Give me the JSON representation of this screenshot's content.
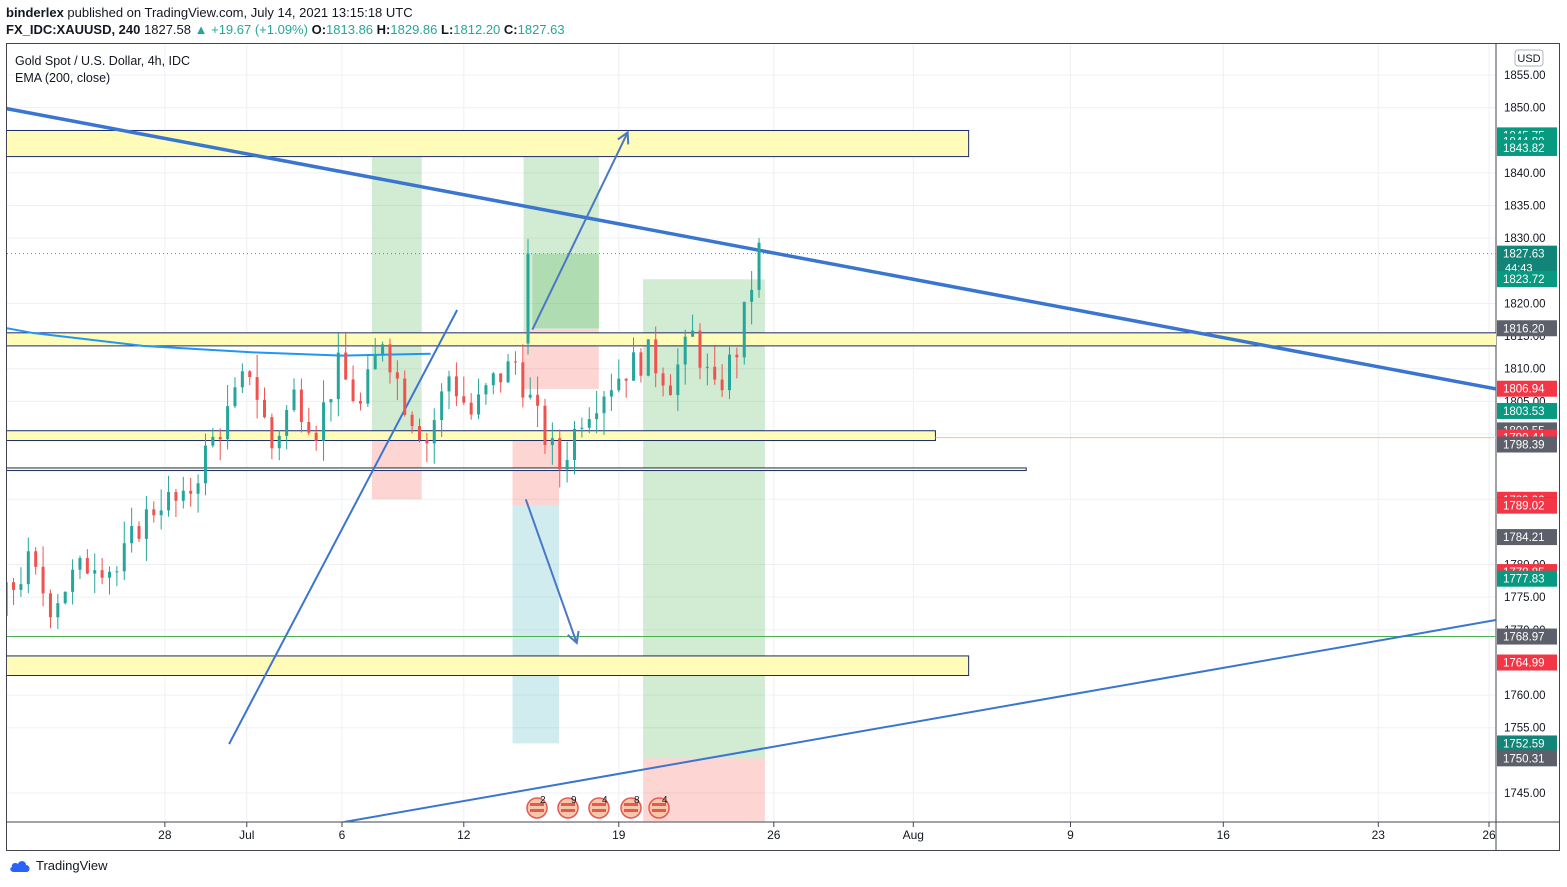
{
  "header": {
    "publisher": "binderlex",
    "published_text": " published on TradingView.com, July 14, 2021 13:15:18 UTC",
    "symbol": "FX_IDC:XAUUSD, 240",
    "last": "1827.58",
    "change": "▲ +19.67 (+1.09%)",
    "o_label": "O:",
    "o_value": "1813.86",
    "h_label": "H:",
    "h_value": "1829.86",
    "l_label": "L:",
    "l_value": "1812.20",
    "c_label": "C:",
    "c_value": "1827.63"
  },
  "legend": {
    "title": "Gold Spot / U.S. Dollar, 4h, IDC",
    "indicator": "EMA (200, close)"
  },
  "brand": {
    "name": "TradingView"
  },
  "currency": "USD",
  "colors": {
    "up": "#26a69a",
    "down": "#ef5350",
    "ema": "#2196f3",
    "trend": "#3a75d0",
    "zone_fill": "#fffbb8",
    "zone_border": "#1a2a6c",
    "green_tag": "#089981",
    "red_tag": "#f23645",
    "gray_tag": "#5d606b",
    "teal_tag": "#008f88"
  },
  "chart_data": {
    "type": "candlestick",
    "symbol": "XAUUSD",
    "timeframe": "4h",
    "ylim": [
      1740,
      1860
    ],
    "y_ticks": [
      1745,
      1755,
      1760,
      1770,
      1775,
      1780,
      1790,
      1800,
      1805,
      1810,
      1815,
      1820,
      1830,
      1835,
      1840,
      1850,
      1855
    ],
    "x_ticks": [
      "28",
      "Jul",
      "6",
      "12",
      "19",
      "26",
      "Aug",
      "9",
      "16",
      "23",
      "26"
    ],
    "last_price": 1827.63,
    "countdown": "44:43",
    "price_tags": [
      {
        "value": "1845.75",
        "color": "green"
      },
      {
        "value": "1844.80",
        "color": "green"
      },
      {
        "value": "1843.82",
        "color": "green"
      },
      {
        "value": "1827.63",
        "color": "teal",
        "sub": "44:43"
      },
      {
        "value": "1823.72",
        "color": "green"
      },
      {
        "value": "1816.20",
        "color": "gray"
      },
      {
        "value": "1806.94",
        "color": "red"
      },
      {
        "value": "1803.53",
        "color": "green"
      },
      {
        "value": "1800.55",
        "color": "gray"
      },
      {
        "value": "1799.44",
        "color": "red"
      },
      {
        "value": "1798.39",
        "color": "gray"
      },
      {
        "value": "1789.92",
        "color": "red"
      },
      {
        "value": "1789.09",
        "color": "gray"
      },
      {
        "value": "1789.02",
        "color": "red"
      },
      {
        "value": "1784.21",
        "color": "gray"
      },
      {
        "value": "1778.85",
        "color": "red"
      },
      {
        "value": "1777.83",
        "color": "green"
      },
      {
        "value": "1768.97",
        "color": "gray"
      },
      {
        "value": "1764.99",
        "color": "red"
      },
      {
        "value": "1752.59",
        "color": "teal"
      },
      {
        "value": "1750.31",
        "color": "gray"
      }
    ],
    "zones": [
      {
        "from": 1842.5,
        "to": 1846.5,
        "x_end": "Aug 3"
      },
      {
        "from": 1813.5,
        "to": 1815.5,
        "x_end": "Right"
      },
      {
        "from": 1799.0,
        "to": 1800.5,
        "x_end": "Aug 2"
      },
      {
        "from": 1794.4,
        "to": 1794.8,
        "x_end": "Aug 6"
      },
      {
        "from": 1763.0,
        "to": 1766.0,
        "x_end": "Aug 3"
      }
    ],
    "ema200": [
      [
        -33,
        1847
      ],
      [
        -28,
        1836
      ],
      [
        -24,
        1829
      ],
      [
        -21,
        1822
      ],
      [
        -18,
        1818
      ],
      [
        -14,
        1815.5
      ],
      [
        -9,
        1813.5
      ],
      [
        -4,
        1812.5
      ],
      [
        0,
        1812
      ],
      [
        4,
        1812.3
      ]
    ],
    "candles_ohlc_hint": "4h XAUUSD, late June – July 14 2021, range 1750–1829",
    "candle_path_days": [
      [
        -38,
        1780
      ],
      [
        -36,
        1785
      ],
      [
        -34,
        1787
      ],
      [
        -32,
        1791
      ],
      [
        -31,
        1783
      ],
      [
        -30,
        1790
      ],
      [
        -29,
        1781
      ],
      [
        -28,
        1778
      ],
      [
        -27,
        1784
      ],
      [
        -26,
        1782
      ],
      [
        -25,
        1778
      ],
      [
        -24,
        1788
      ],
      [
        -23,
        1780
      ],
      [
        -22,
        1783
      ],
      [
        -21,
        1770
      ],
      [
        -20,
        1752
      ],
      [
        -19,
        1757
      ],
      [
        -18,
        1762
      ],
      [
        -17,
        1755
      ],
      [
        -16,
        1766
      ],
      [
        -15,
        1775
      ],
      [
        -14,
        1780
      ],
      [
        -13,
        1774
      ],
      [
        -12,
        1778
      ],
      [
        -11,
        1781
      ],
      [
        -10,
        1779
      ],
      [
        -9,
        1786
      ],
      [
        -8,
        1790
      ],
      [
        -7,
        1789
      ],
      [
        -6,
        1797
      ],
      [
        -5,
        1803
      ],
      [
        -4,
        1810
      ],
      [
        -3,
        1798
      ],
      [
        -2,
        1806
      ],
      [
        -1,
        1801
      ],
      [
        0,
        1810
      ],
      [
        1,
        1804
      ],
      [
        2,
        1815
      ],
      [
        3,
        1805
      ],
      [
        4,
        1799
      ],
      [
        5,
        1809
      ],
      [
        6,
        1803
      ],
      [
        7,
        1808
      ],
      [
        8,
        1811
      ],
      [
        9,
        1802
      ],
      [
        10,
        1795
      ],
      [
        11,
        1803
      ],
      [
        12,
        1807
      ],
      [
        13,
        1810
      ],
      [
        14,
        1812
      ],
      [
        15,
        1808
      ],
      [
        16,
        1815
      ],
      [
        17,
        1806
      ],
      [
        18,
        1813
      ],
      [
        19,
        1828
      ]
    ]
  }
}
